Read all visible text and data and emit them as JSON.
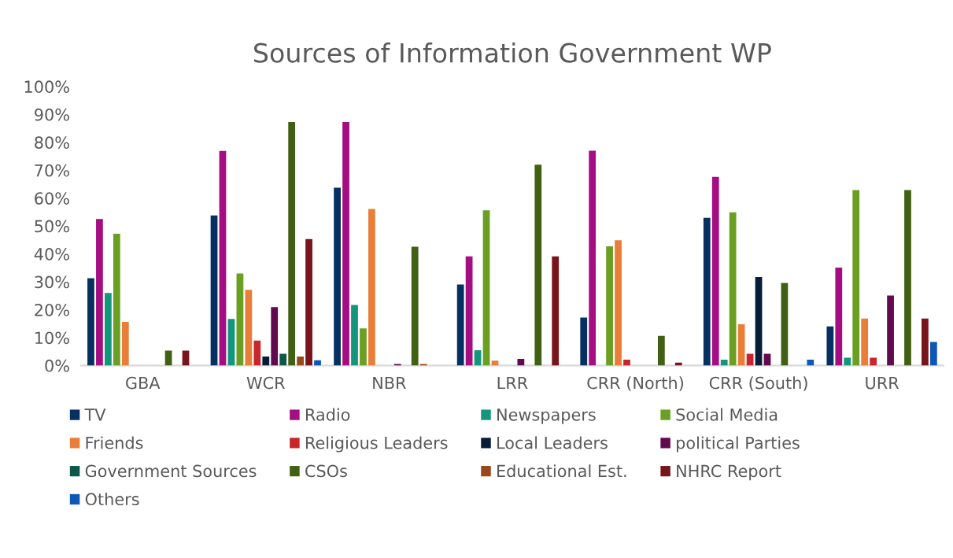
{
  "chart_data": {
    "type": "bar",
    "title": "Sources of Information Government WP",
    "categories": [
      "GBA",
      "WCR",
      "NBR",
      "LRR",
      "CRR (North)",
      "CRR (South)",
      "URR"
    ],
    "series": [
      {
        "name": "TV",
        "color": "#063061",
        "values": [
          31.3,
          53.8,
          63.7,
          29,
          17.2,
          52.9,
          14
        ]
      },
      {
        "name": "Radio",
        "color": "#a50e82",
        "values": [
          52.5,
          76.9,
          87.3,
          39.1,
          77,
          67.6,
          35.1
        ]
      },
      {
        "name": "Newspapers",
        "color": "#14967c",
        "values": [
          26,
          16.7,
          21.7,
          5.5,
          null,
          2.1,
          2.8
        ]
      },
      {
        "name": "Social Media",
        "color": "#6a9f22",
        "values": [
          47.2,
          33,
          13.3,
          55.6,
          42.7,
          54.9,
          62.9
        ]
      },
      {
        "name": "Friends",
        "color": "#e97e38",
        "values": [
          15.6,
          27.1,
          56.1,
          1.7,
          44.9,
          14.8,
          16.8
        ]
      },
      {
        "name": "Religious Leaders",
        "color": "#c8262b",
        "values": [
          null,
          8.9,
          null,
          null,
          2.1,
          4.2,
          2.8
        ]
      },
      {
        "name": "Local Leaders",
        "color": "#061d3a",
        "values": [
          null,
          3.2,
          null,
          null,
          null,
          31.7,
          null
        ]
      },
      {
        "name": "political Parties",
        "color": "#620a4e",
        "values": [
          null,
          20.9,
          0.5,
          2.4,
          null,
          4.2,
          25.1
        ]
      },
      {
        "name": "Government Sources",
        "color": "#0f5747",
        "values": [
          null,
          4.2,
          null,
          null,
          null,
          null,
          null
        ]
      },
      {
        "name": "CSOs",
        "color": "#426014",
        "values": [
          5.3,
          87.3,
          42.6,
          72,
          10.6,
          29.6,
          62.9
        ]
      },
      {
        "name": "Educational Est.",
        "color": "#98481b",
        "values": [
          null,
          3.2,
          0.5,
          null,
          null,
          null,
          null
        ]
      },
      {
        "name": "NHRC Report",
        "color": "#77151a",
        "values": [
          5.3,
          45.3,
          null,
          39.1,
          1.0,
          null,
          16.8
        ]
      },
      {
        "name": "Others",
        "color": "#0e57b5",
        "values": [
          null,
          1.9,
          null,
          null,
          null,
          2.1,
          8.4
        ]
      }
    ],
    "ylim": [
      0,
      100
    ],
    "yticks": [
      {
        "value": 0,
        "label": "0%"
      },
      {
        "value": 10,
        "label": "10%"
      },
      {
        "value": 20,
        "label": "20%"
      },
      {
        "value": 30,
        "label": "30%"
      },
      {
        "value": 40,
        "label": "40%"
      },
      {
        "value": 50,
        "label": "50%"
      },
      {
        "value": 60,
        "label": "60%"
      },
      {
        "value": 70,
        "label": "70%"
      },
      {
        "value": 80,
        "label": "80%"
      },
      {
        "value": 90,
        "label": "90%"
      },
      {
        "value": 100,
        "label": "100%"
      }
    ],
    "grid": false,
    "legend": "bottom"
  }
}
